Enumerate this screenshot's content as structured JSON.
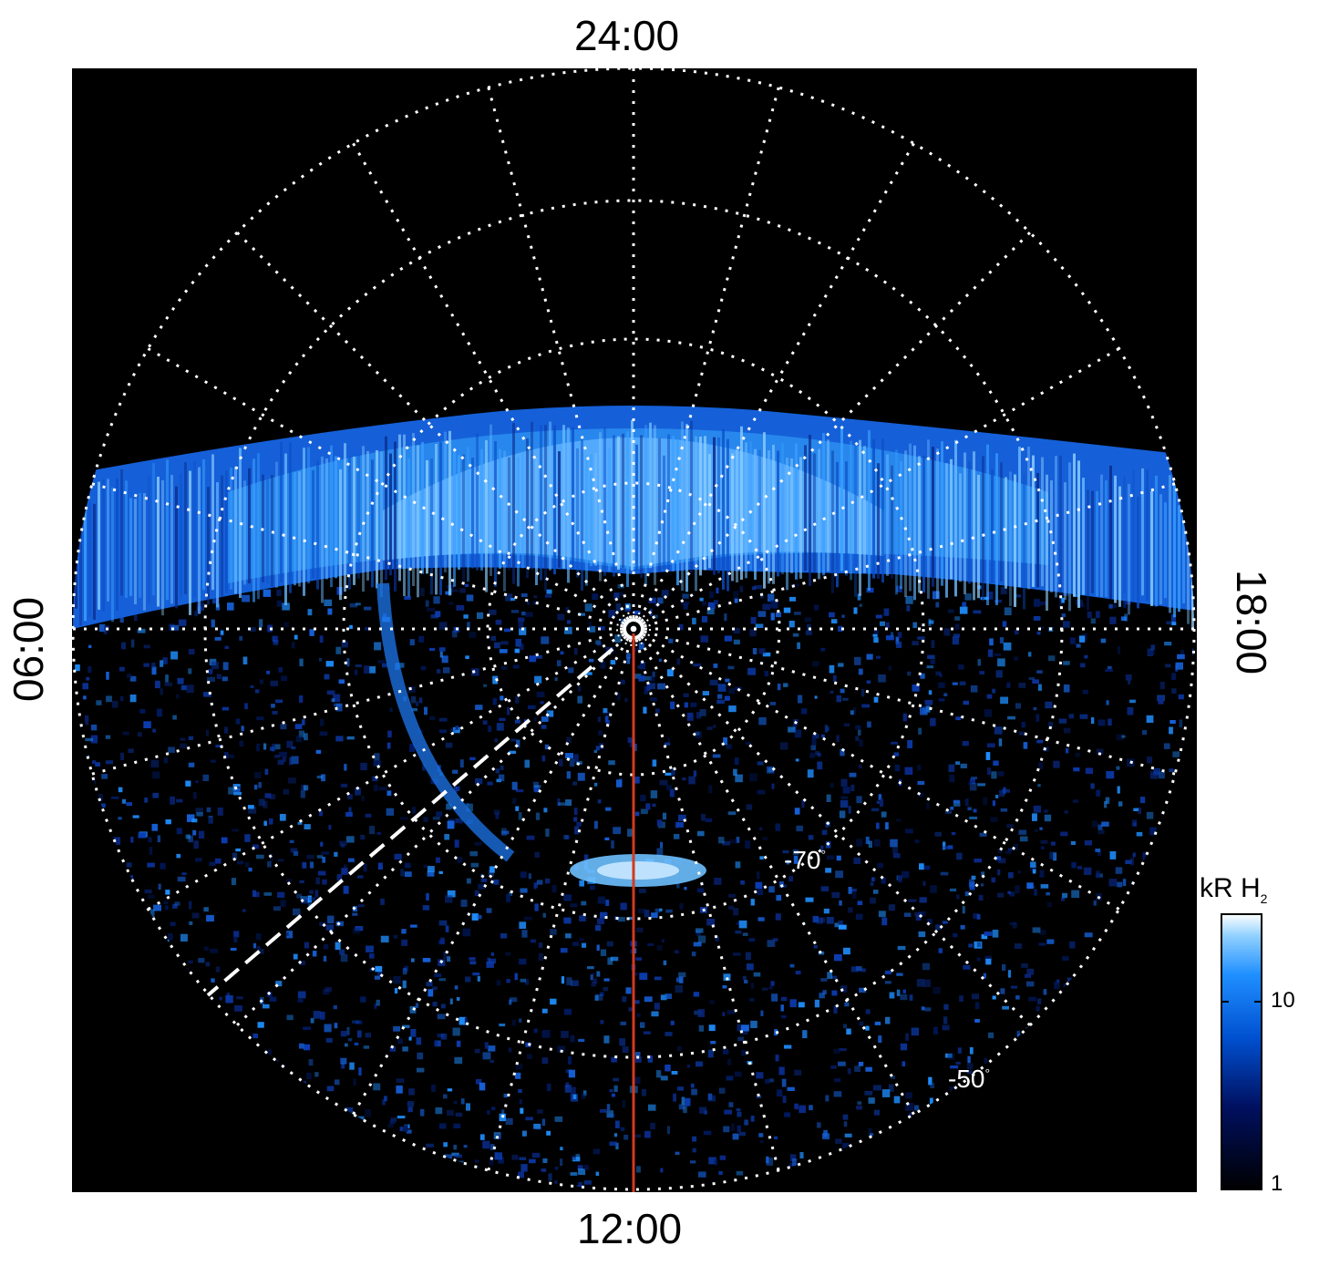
{
  "labels": {
    "top": "24:00",
    "bottom": "12:00",
    "left": "06:00",
    "right": "18:00"
  },
  "latitude_labels": {
    "lat70": "-70",
    "lat50": "-50",
    "degree": "°"
  },
  "colorbar": {
    "title_main": "kR H",
    "title_sub": "2",
    "ticks": [
      "10",
      "1"
    ]
  },
  "colors": {
    "background": "#000000",
    "grid": "#ffffff",
    "meridian_line": "#d23a1e",
    "aurora_bright": "#8fd0ff",
    "aurora_mid": "#1f8fff",
    "aurora_dim": "#0a2a8a"
  }
}
